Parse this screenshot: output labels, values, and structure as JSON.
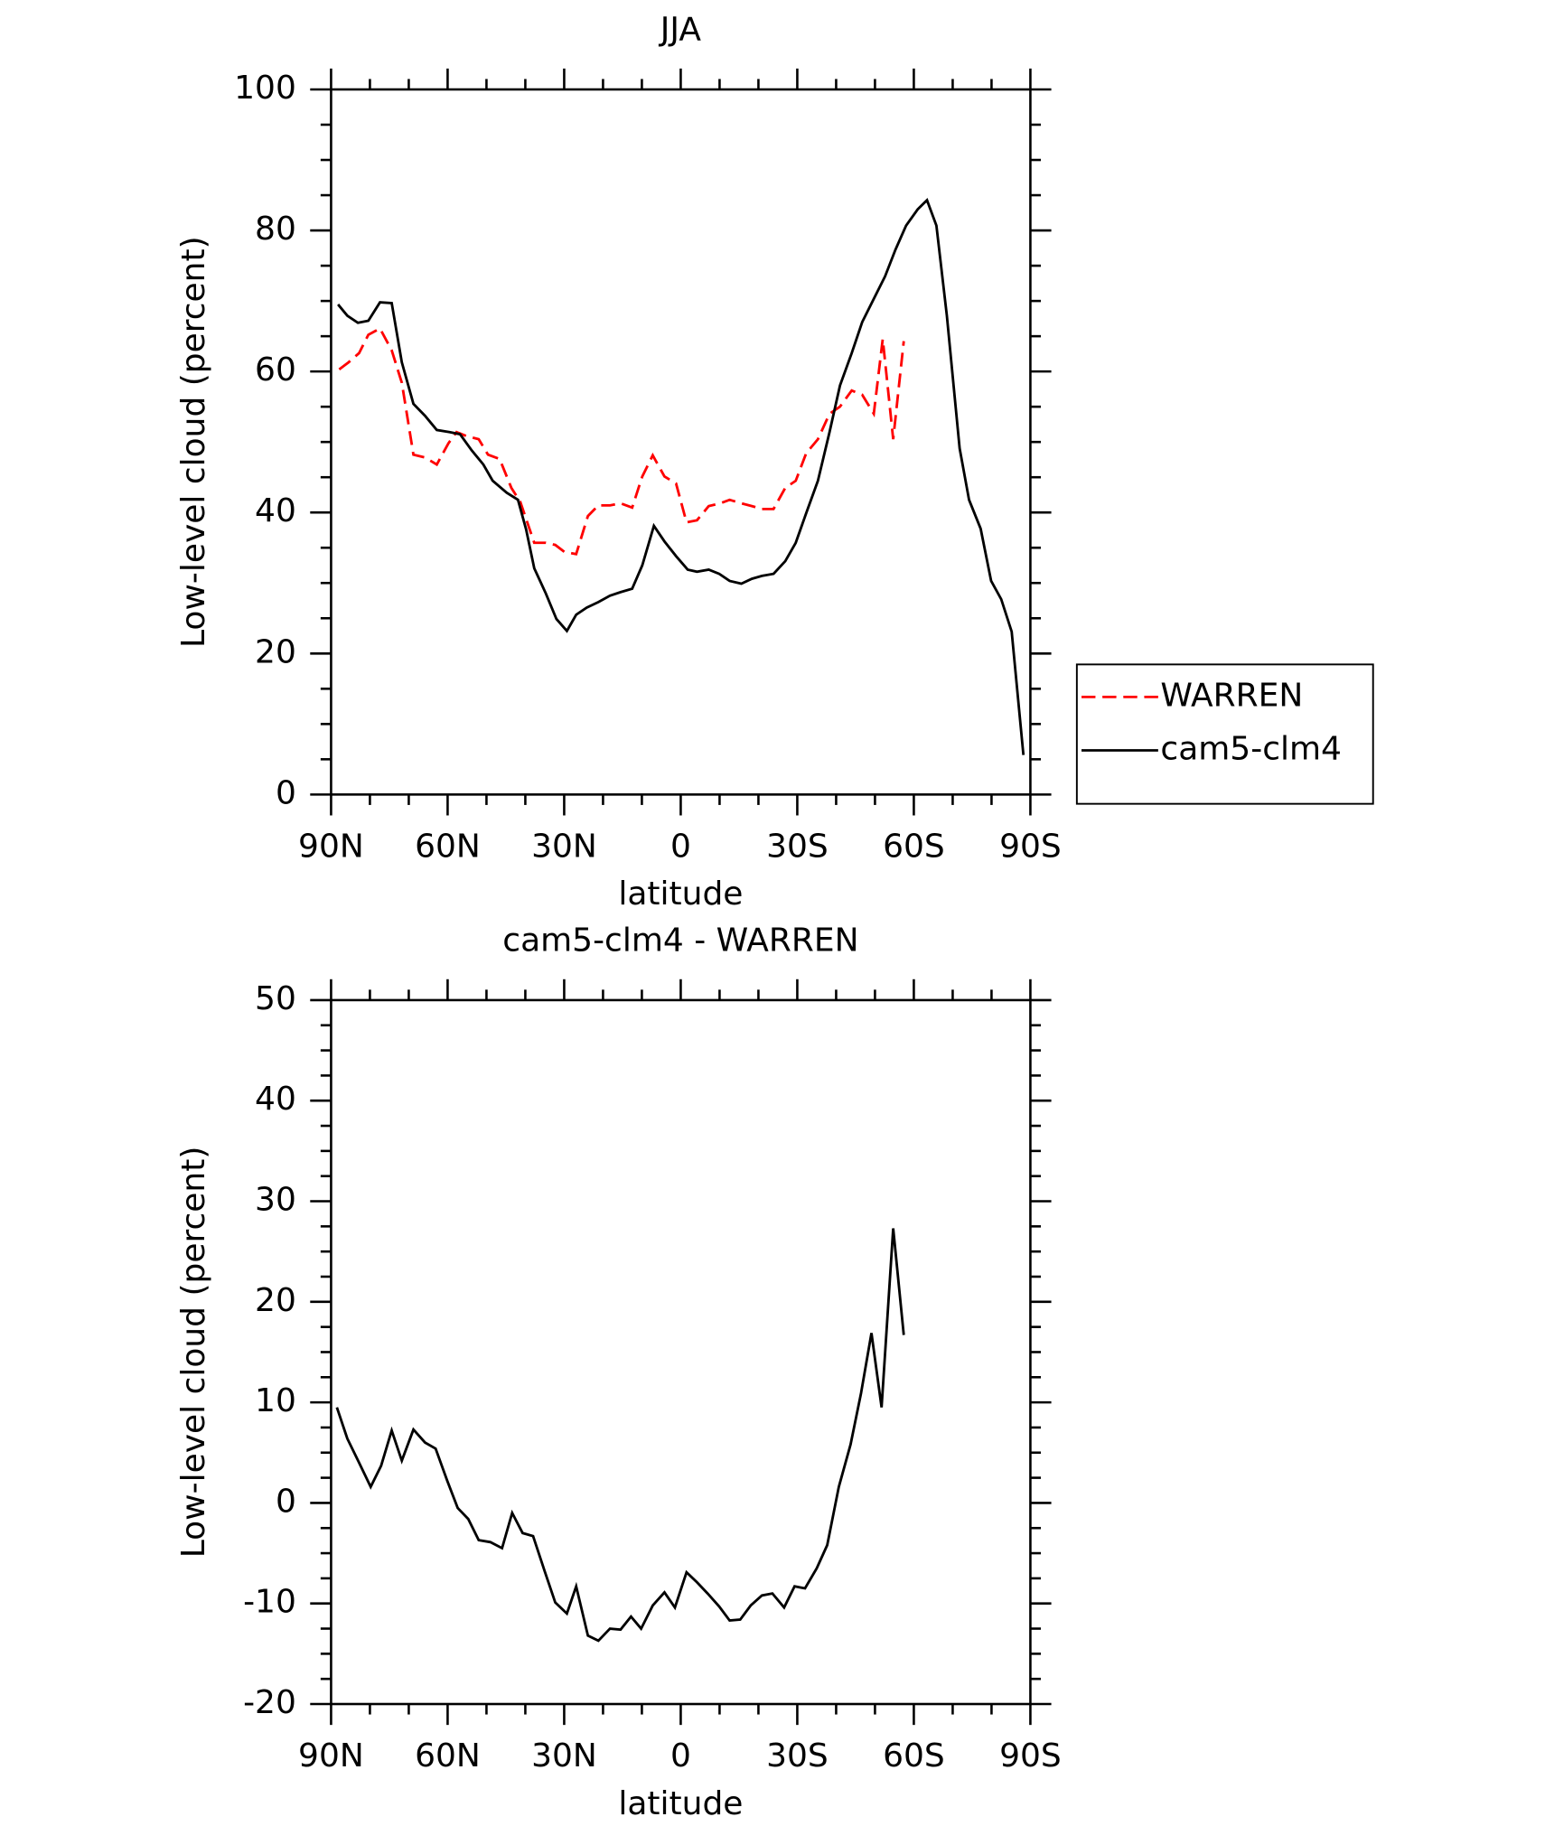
{
  "chart_data": [
    {
      "type": "line",
      "title": "JJA",
      "xlabel": "latitude",
      "ylabel": "Low-level cloud (percent)",
      "xlim": [
        90,
        -90
      ],
      "xticks": [
        {
          "value": 90,
          "label": "90N"
        },
        {
          "value": 60,
          "label": "60N"
        },
        {
          "value": 30,
          "label": "30N"
        },
        0,
        {
          "value": -30,
          "label": "30S"
        },
        {
          "value": -60,
          "label": "60S"
        },
        {
          "value": -90,
          "label": "90S"
        }
      ],
      "ylim": [
        0,
        100
      ],
      "yticks": [
        0,
        20,
        40,
        60,
        80,
        100
      ],
      "legend": "right",
      "series": [
        {
          "name": "WARREN",
          "color": "#ff0000",
          "dashed": true,
          "x": [
            87.9,
            85.5,
            82.8,
            80.4,
            77.4,
            74.4,
            71.8,
            68.8,
            65.8,
            62.8,
            59.8,
            57.7,
            55.0,
            52.0,
            49.6,
            46.6,
            43.6,
            41.3,
            37.7,
            34.7,
            32.3,
            29.9,
            26.9,
            23.9,
            21.2,
            18.2,
            15.5,
            12.5,
            9.9,
            7.2,
            4.2,
            1.2,
            -1.5,
            -4.2,
            -7.2,
            -10.2,
            -12.6,
            -15.6,
            -18.3,
            -20.9,
            -23.9,
            -26.9,
            -29.6,
            -32.3,
            -35.3,
            -38.3,
            -41.0,
            -44.0,
            -46.7,
            -49.7,
            -52.0,
            -54.7,
            -57.4
          ],
          "values": [
            60.3,
            61.3,
            62.6,
            65.2,
            66.1,
            63.0,
            58.4,
            48.2,
            47.8,
            46.8,
            49.8,
            51.4,
            50.8,
            50.4,
            48.2,
            47.6,
            43.5,
            41.5,
            35.7,
            35.7,
            35.4,
            34.4,
            34.1,
            39.5,
            41.0,
            41.0,
            41.3,
            40.7,
            45.1,
            48.1,
            45.1,
            44.1,
            38.6,
            38.9,
            40.9,
            41.3,
            41.8,
            41.3,
            40.9,
            40.5,
            40.5,
            43.5,
            44.5,
            48.4,
            50.4,
            54.0,
            55.0,
            57.3,
            56.7,
            54.0,
            64.6,
            50.4,
            64.3
          ]
        },
        {
          "name": "cam5-clm4",
          "color": "#000000",
          "dashed": false,
          "x": [
            88.2,
            85.8,
            83.1,
            80.4,
            77.4,
            74.4,
            71.8,
            68.8,
            65.8,
            62.8,
            59.5,
            56.8,
            53.8,
            50.8,
            48.4,
            44.8,
            41.9,
            39.8,
            37.7,
            34.7,
            32.0,
            29.3,
            26.9,
            24.2,
            21.2,
            18.2,
            15.5,
            12.5,
            9.9,
            6.9,
            4.2,
            1.2,
            -1.8,
            -4.2,
            -7.2,
            -9.9,
            -12.6,
            -15.6,
            -18.3,
            -20.9,
            -23.9,
            -26.9,
            -29.6,
            -32.3,
            -35.3,
            -38.3,
            -41.0,
            -44.0,
            -46.7,
            -49.7,
            -52.6,
            -55.3,
            -58.0,
            -61.0,
            -63.4,
            -65.8,
            -68.5,
            -71.8,
            -74.2,
            -77.2,
            -79.9,
            -82.5,
            -85.2,
            -88.2
          ],
          "values": [
            69.5,
            67.9,
            66.9,
            67.2,
            69.8,
            69.7,
            61.3,
            55.4,
            53.7,
            51.7,
            51.4,
            51.1,
            48.8,
            46.8,
            44.5,
            42.8,
            41.8,
            37.6,
            32.1,
            28.5,
            24.9,
            23.2,
            25.5,
            26.5,
            27.3,
            28.2,
            28.7,
            29.2,
            32.5,
            38.1,
            35.9,
            33.8,
            31.9,
            31.6,
            31.9,
            31.3,
            30.3,
            29.9,
            30.6,
            31.0,
            31.3,
            33.1,
            35.7,
            39.9,
            44.5,
            51.4,
            58.0,
            62.6,
            67.0,
            70.3,
            73.5,
            77.3,
            80.7,
            83.0,
            84.3,
            80.7,
            67.9,
            49.1,
            41.8,
            37.7,
            30.3,
            27.7,
            23.1,
            5.6
          ]
        }
      ]
    },
    {
      "type": "line",
      "title": "cam5-clm4 - WARREN",
      "xlabel": "latitude",
      "ylabel": "Low-level cloud (percent)",
      "xlim": [
        90,
        -90
      ],
      "xticks": [
        {
          "value": 90,
          "label": "90N"
        },
        {
          "value": 60,
          "label": "60N"
        },
        {
          "value": 30,
          "label": "30N"
        },
        0,
        {
          "value": -30,
          "label": "30S"
        },
        {
          "value": -60,
          "label": "60S"
        },
        {
          "value": -90,
          "label": "90S"
        }
      ],
      "ylim": [
        -20,
        50
      ],
      "yticks": [
        -20,
        -10,
        0,
        10,
        20,
        30,
        40,
        50
      ],
      "color": "#000000",
      "x": [
        88.5,
        85.8,
        82.8,
        79.8,
        77.1,
        74.4,
        71.8,
        68.8,
        65.8,
        63.1,
        60.1,
        57.4,
        54.7,
        52.0,
        49.0,
        46.0,
        43.4,
        40.7,
        38.0,
        35.0,
        32.3,
        29.3,
        26.9,
        23.9,
        21.2,
        18.2,
        15.5,
        12.8,
        10.2,
        7.2,
        4.2,
        1.5,
        -1.5,
        -4.2,
        -6.9,
        -9.9,
        -12.6,
        -15.3,
        -18.0,
        -20.9,
        -23.6,
        -26.6,
        -29.3,
        -32.0,
        -35.0,
        -37.7,
        -40.7,
        -43.7,
        -46.4,
        -49.1,
        -51.7,
        -54.7,
        -57.4
      ],
      "values": [
        9.5,
        6.4,
        4.0,
        1.6,
        3.7,
        7.2,
        4.2,
        7.3,
        6.0,
        5.4,
        2.2,
        -0.5,
        -1.6,
        -3.7,
        -3.9,
        -4.5,
        -1.0,
        -3.0,
        -3.3,
        -6.8,
        -9.9,
        -11.0,
        -8.3,
        -13.2,
        -13.7,
        -12.5,
        -12.6,
        -11.3,
        -12.5,
        -10.2,
        -8.9,
        -10.4,
        -6.9,
        -7.9,
        -9.0,
        -10.3,
        -11.7,
        -11.6,
        -10.2,
        -9.2,
        -9.0,
        -10.4,
        -8.3,
        -8.5,
        -6.5,
        -4.2,
        1.6,
        5.8,
        10.9,
        16.9,
        9.5,
        27.3,
        16.7
      ]
    }
  ]
}
